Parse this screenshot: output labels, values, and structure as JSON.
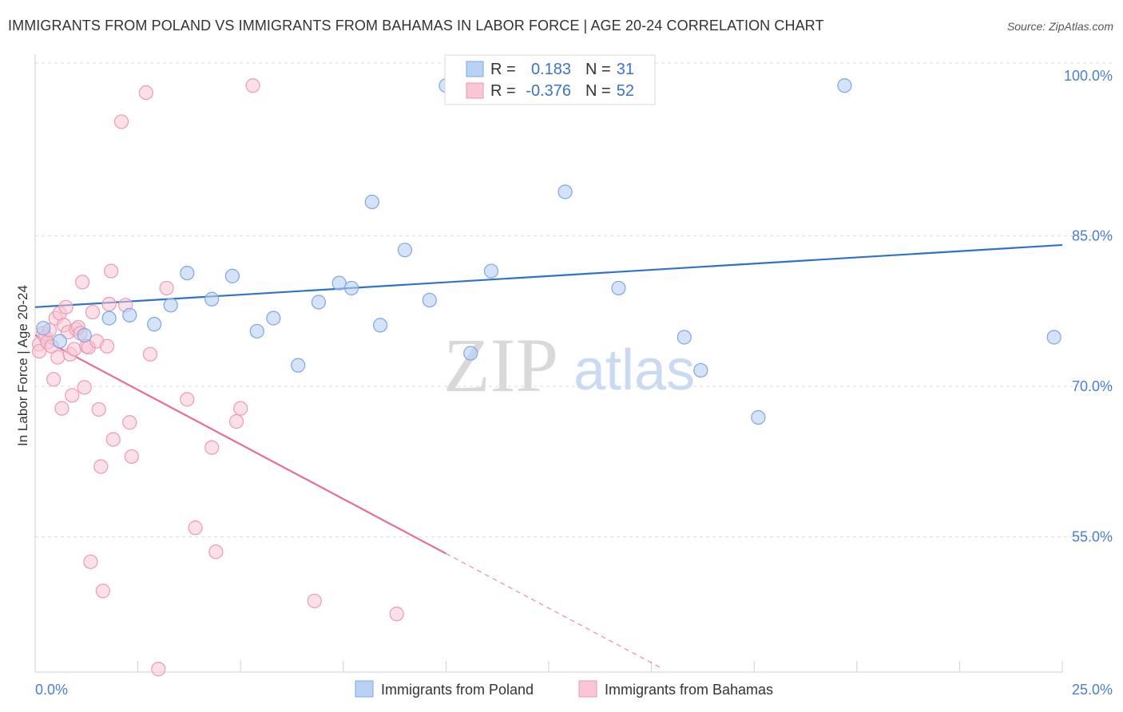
{
  "title": "IMMIGRANTS FROM POLAND VS IMMIGRANTS FROM BAHAMAS IN LABOR FORCE | AGE 20-24 CORRELATION CHART",
  "source": "Source: ZipAtlas.com",
  "watermark": {
    "zip": "ZIP",
    "atlas": "atlas"
  },
  "colors": {
    "poland_fill": "#b9d1f3",
    "poland_stroke": "#7ea6e3",
    "poland_line": "#2f72c8",
    "bahamas_fill": "#f8c6d4",
    "bahamas_stroke": "#ec9ab3",
    "bahamas_line": "#e46d9a",
    "grid": "#dcdcdc",
    "tick_text": "#4a7fd0"
  },
  "stats": {
    "r_label": "R =",
    "n_label": "N =",
    "poland": {
      "r": "0.183",
      "n": "31"
    },
    "bahamas": {
      "r": "-0.376",
      "n": "52"
    }
  },
  "chart_data": {
    "type": "scatter",
    "title": "IMMIGRANTS FROM POLAND VS IMMIGRANTS FROM BAHAMAS IN LABOR FORCE | AGE 20-24 CORRELATION CHART",
    "xlabel": "",
    "ylabel": "In Labor Force | Age 20-24",
    "xlim": [
      0,
      25
    ],
    "ylim": [
      42,
      102
    ],
    "x_tick_labels": [
      "0.0%",
      "25.0%"
    ],
    "y_ticks": [
      55,
      70,
      85,
      100
    ],
    "y_tick_labels": [
      "55.0%",
      "70.0%",
      "85.0%",
      "100.0%"
    ],
    "grid": true,
    "legend_position": "bottom-center",
    "series": [
      {
        "name": "Immigrants from Poland",
        "trend": {
          "x": [
            0,
            25
          ],
          "y": [
            77.9,
            84.1
          ],
          "dashed_from": null
        },
        "points": [
          [
            0.2,
            75.8
          ],
          [
            1.2,
            75.1
          ],
          [
            1.8,
            76.8
          ],
          [
            2.3,
            77.1
          ],
          [
            2.9,
            76.2
          ],
          [
            3.3,
            78.1
          ],
          [
            3.7,
            81.3
          ],
          [
            4.3,
            78.7
          ],
          [
            4.8,
            81.0
          ],
          [
            5.4,
            75.5
          ],
          [
            5.8,
            76.8
          ],
          [
            6.4,
            72.1
          ],
          [
            6.9,
            78.4
          ],
          [
            7.4,
            80.3
          ],
          [
            7.7,
            79.8
          ],
          [
            8.2,
            88.4
          ],
          [
            8.4,
            76.1
          ],
          [
            9.0,
            83.6
          ],
          [
            9.6,
            78.6
          ],
          [
            10.0,
            100.0
          ],
          [
            10.6,
            73.3
          ],
          [
            11.1,
            81.5
          ],
          [
            12.1,
            100.0
          ],
          [
            12.9,
            89.4
          ],
          [
            14.2,
            79.8
          ],
          [
            15.8,
            74.9
          ],
          [
            16.2,
            71.6
          ],
          [
            17.6,
            66.9
          ],
          [
            19.7,
            100.0
          ],
          [
            24.8,
            74.9
          ],
          [
            0.6,
            74.5
          ]
        ]
      },
      {
        "name": "Immigrants from Bahamas",
        "trend": {
          "x": [
            0,
            15.2
          ],
          "y": [
            75.1,
            42.0
          ],
          "solid_until_x": 10.0
        },
        "points": [
          [
            0.1,
            74.2
          ],
          [
            0.1,
            73.5
          ],
          [
            0.2,
            75.3
          ],
          [
            0.25,
            74.9
          ],
          [
            0.3,
            74.4
          ],
          [
            0.35,
            75.6
          ],
          [
            0.4,
            74.0
          ],
          [
            0.45,
            70.7
          ],
          [
            0.5,
            76.8
          ],
          [
            0.55,
            72.9
          ],
          [
            0.6,
            77.3
          ],
          [
            0.65,
            67.8
          ],
          [
            0.7,
            76.1
          ],
          [
            0.75,
            77.9
          ],
          [
            0.8,
            75.4
          ],
          [
            0.85,
            73.2
          ],
          [
            0.9,
            69.1
          ],
          [
            0.95,
            73.7
          ],
          [
            1.0,
            75.7
          ],
          [
            1.05,
            75.9
          ],
          [
            1.1,
            75.3
          ],
          [
            1.15,
            80.4
          ],
          [
            1.2,
            69.9
          ],
          [
            1.25,
            74.0
          ],
          [
            1.3,
            73.9
          ],
          [
            1.35,
            52.5
          ],
          [
            1.4,
            77.4
          ],
          [
            1.5,
            74.5
          ],
          [
            1.55,
            67.7
          ],
          [
            1.6,
            62.0
          ],
          [
            1.65,
            49.6
          ],
          [
            1.75,
            74.0
          ],
          [
            1.8,
            78.2
          ],
          [
            1.85,
            81.5
          ],
          [
            1.9,
            64.7
          ],
          [
            2.1,
            96.4
          ],
          [
            2.2,
            78.1
          ],
          [
            2.3,
            66.4
          ],
          [
            2.35,
            63.0
          ],
          [
            2.7,
            99.3
          ],
          [
            2.8,
            73.2
          ],
          [
            3.0,
            41.8
          ],
          [
            3.2,
            79.8
          ],
          [
            3.7,
            68.7
          ],
          [
            3.9,
            55.9
          ],
          [
            4.3,
            63.9
          ],
          [
            4.4,
            53.5
          ],
          [
            4.9,
            66.5
          ],
          [
            5.0,
            67.8
          ],
          [
            5.3,
            100.0
          ],
          [
            6.8,
            48.6
          ],
          [
            8.8,
            47.3
          ]
        ]
      }
    ]
  },
  "legend": {
    "poland": "Immigrants from Poland",
    "bahamas": "Immigrants from Bahamas"
  }
}
